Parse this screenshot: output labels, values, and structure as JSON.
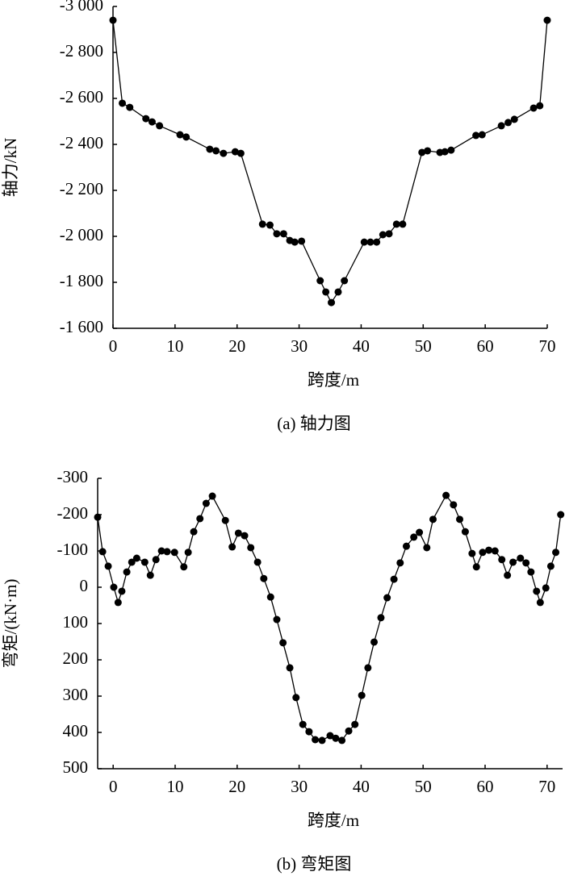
{
  "chart_data": [
    {
      "type": "line",
      "caption": "(a) 轴力图",
      "xlabel": "跨度/m",
      "ylabel": "轴力/kN",
      "color": "#000000",
      "x": [
        0,
        1.5,
        2.7,
        5.3,
        6.3,
        7.5,
        10.8,
        11.8,
        15.6,
        16.6,
        17.8,
        19.7,
        20.6,
        24.1,
        25.3,
        26.4,
        27.5,
        28.5,
        29.3,
        30.4,
        33.4,
        34.3,
        35.2,
        36.3,
        37.3,
        40.5,
        41.5,
        42.5,
        43.5,
        44.5,
        45.7,
        46.7,
        49.8,
        50.7,
        52.7,
        53.5,
        54.5,
        58.5,
        59.5,
        62.6,
        63.7,
        64.7,
        67.8,
        68.8,
        70
      ],
      "values": [
        -2940,
        -2579,
        -2561,
        -2512,
        -2498,
        -2481,
        -2442,
        -2432,
        -2379,
        -2372,
        -2361,
        -2368,
        -2361,
        -2053,
        -2049,
        -2011,
        -2011,
        -1982,
        -1975,
        -1979,
        -1807,
        -1758,
        -1712,
        -1758,
        -1807,
        -1975,
        -1975,
        -1975,
        -2007,
        -2011,
        -2053,
        -2053,
        -2365,
        -2372,
        -2365,
        -2368,
        -2375,
        -2439,
        -2442,
        -2481,
        -2495,
        -2509,
        -2558,
        -2568,
        -2940
      ],
      "xlim": [
        0,
        70
      ],
      "xticks": [
        0,
        10,
        20,
        30,
        40,
        50,
        60,
        70
      ],
      "ylim": [
        -1600,
        -3000
      ],
      "yticks": [
        {
          "value": -3000,
          "label": "-3 000"
        },
        {
          "value": -2800,
          "label": "-2 800"
        },
        {
          "value": -2600,
          "label": "-2 600"
        },
        {
          "value": -2400,
          "label": "-2 400"
        },
        {
          "value": -2200,
          "label": "-2 200"
        },
        {
          "value": -2000,
          "label": "-2 000"
        },
        {
          "value": -1800,
          "label": "-1 800"
        },
        {
          "value": -1600,
          "label": "-1 600"
        }
      ]
    },
    {
      "type": "line",
      "caption": "(b) 弯矩图",
      "xlabel": "跨度/m",
      "ylabel": "弯矩/(kN·m)",
      "color": "#000000",
      "x": [
        -2.5,
        -1.7,
        -0.8,
        0.1,
        0.8,
        1.4,
        2.2,
        3.0,
        3.8,
        5.1,
        6.0,
        6.9,
        7.8,
        8.7,
        9.9,
        11.4,
        12.1,
        13.0,
        14.0,
        15.0,
        16.0,
        18.1,
        19.2,
        20.2,
        21.2,
        22.2,
        23.3,
        24.3,
        25.4,
        26.4,
        27.4,
        28.5,
        29.5,
        30.6,
        31.6,
        32.6,
        33.7,
        35.0,
        35.9,
        36.9,
        38.0,
        39.0,
        40.1,
        41.1,
        42.1,
        43.2,
        44.2,
        45.3,
        46.3,
        47.3,
        48.5,
        49.4,
        50.6,
        51.6,
        53.7,
        54.9,
        55.9,
        56.8,
        57.9,
        58.6,
        59.6,
        60.6,
        61.6,
        62.7,
        63.6,
        64.5,
        65.7,
        66.6,
        67.4,
        68.3,
        68.9,
        69.8,
        70.6,
        71.4,
        72.2
      ],
      "values": [
        -193,
        -98,
        -58,
        0,
        42,
        11,
        -42,
        -69,
        -80,
        -69,
        -33,
        -76,
        -100,
        -98,
        -96,
        -56,
        -96,
        -153,
        -189,
        -231,
        -251,
        -184,
        -111,
        -149,
        -142,
        -109,
        -69,
        -24,
        27,
        89,
        153,
        222,
        304,
        378,
        398,
        420,
        422,
        409,
        416,
        422,
        396,
        378,
        298,
        222,
        151,
        84,
        29,
        -22,
        -67,
        -113,
        -138,
        -151,
        -109,
        -187,
        -253,
        -227,
        -187,
        -153,
        -93,
        -56,
        -96,
        -102,
        -100,
        -76,
        -33,
        -69,
        -80,
        -67,
        -42,
        11,
        42,
        2,
        -58,
        -96,
        -200
      ],
      "xlim": [
        -2.5,
        72.5
      ],
      "xticks": [
        0,
        10,
        20,
        30,
        40,
        50,
        60,
        70
      ],
      "ylim": [
        500,
        -300
      ],
      "yticks": [
        -300,
        -200,
        -100,
        0,
        100,
        200,
        300,
        400,
        500
      ]
    }
  ]
}
